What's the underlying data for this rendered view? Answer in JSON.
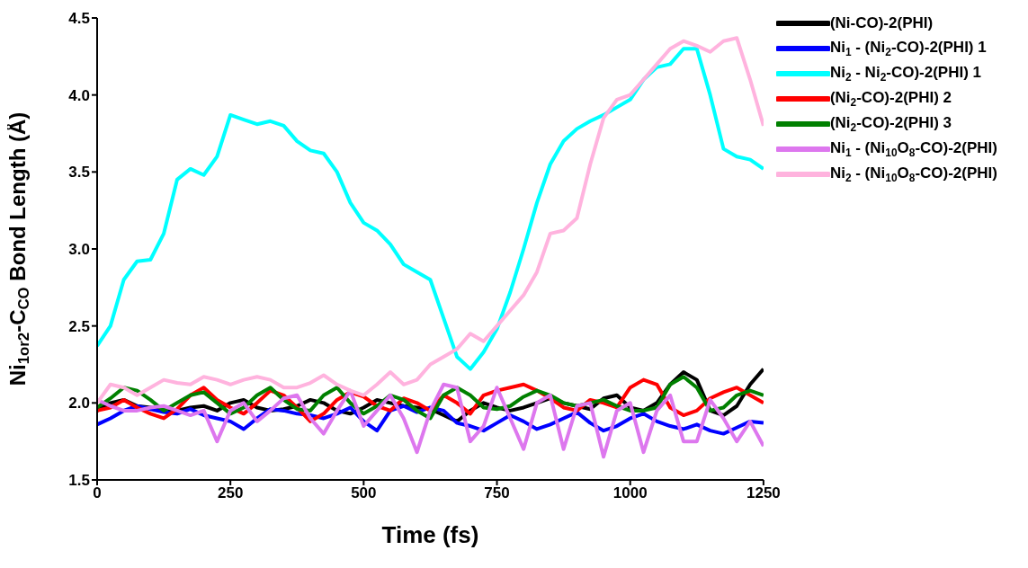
{
  "chart_data": {
    "type": "line",
    "xlabel": "Time (fs)",
    "ylabel": "Ni$_{1or2}$-C$_{CO}$ Bond Length (Å)",
    "xlim": [
      0,
      1250
    ],
    "xticks": [
      0,
      250,
      500,
      750,
      1000,
      1250
    ],
    "ylim": [
      1.5,
      4.5
    ],
    "yticks": [
      1.5,
      {
        "value": 2,
        "label": "2.0"
      },
      2.5,
      {
        "value": 3,
        "label": "3.0"
      },
      3.5,
      {
        "value": 4,
        "label": "4.0"
      },
      4.5
    ],
    "legend": "right",
    "marker": "none",
    "line_style": "solid",
    "grid": false,
    "x": [
      0,
      25,
      50,
      75,
      100,
      125,
      150,
      175,
      200,
      225,
      250,
      275,
      300,
      325,
      350,
      375,
      400,
      425,
      450,
      475,
      500,
      525,
      550,
      575,
      600,
      625,
      650,
      675,
      700,
      725,
      750,
      775,
      800,
      825,
      850,
      875,
      900,
      925,
      950,
      975,
      1000,
      1025,
      1050,
      1075,
      1100,
      1125,
      1150,
      1175,
      1200,
      1225,
      1250
    ],
    "series": [
      {
        "name": "(Ni-CO)-2(PHI)",
        "color": "#000000",
        "values": [
          1.95,
          2.0,
          2.02,
          1.98,
          1.97,
          1.96,
          1.95,
          1.97,
          1.98,
          1.95,
          2.0,
          2.02,
          1.97,
          1.95,
          1.96,
          1.98,
          2.02,
          2.0,
          1.95,
          1.93,
          1.97,
          2.02,
          2.0,
          1.98,
          1.97,
          1.96,
          1.92,
          1.88,
          1.95,
          2.0,
          1.97,
          1.95,
          1.97,
          2.0,
          2.03,
          2.0,
          1.98,
          1.96,
          2.03,
          2.05,
          1.97,
          1.95,
          2.0,
          2.12,
          2.2,
          2.15,
          1.95,
          1.92,
          1.98,
          2.12,
          2.22
        ]
      },
      {
        "name": "Ni$_{1}$ - (Ni$_{2}$-CO)-2(PHI) 1",
        "color": "#0000ff",
        "values": [
          1.86,
          1.9,
          1.95,
          1.98,
          1.96,
          1.94,
          1.93,
          1.96,
          1.92,
          1.9,
          1.88,
          1.83,
          1.9,
          1.96,
          1.95,
          1.93,
          1.92,
          1.9,
          1.93,
          1.97,
          1.88,
          1.82,
          1.95,
          1.98,
          1.94,
          1.97,
          1.95,
          1.87,
          1.85,
          1.82,
          1.87,
          1.92,
          1.88,
          1.83,
          1.86,
          1.9,
          1.94,
          1.87,
          1.82,
          1.85,
          1.9,
          1.93,
          1.88,
          1.85,
          1.83,
          1.86,
          1.82,
          1.8,
          1.84,
          1.88,
          1.87
        ]
      },
      {
        "name": "Ni$_{2}$ - Ni$_{2}$-CO)-2(PHI) 1",
        "color": "#00ffff",
        "values": [
          2.37,
          2.5,
          2.8,
          2.92,
          2.93,
          3.1,
          3.45,
          3.52,
          3.48,
          3.6,
          3.87,
          3.84,
          3.81,
          3.83,
          3.8,
          3.7,
          3.64,
          3.62,
          3.5,
          3.3,
          3.17,
          3.12,
          3.03,
          2.9,
          2.85,
          2.8,
          2.55,
          2.3,
          2.22,
          2.33,
          2.48,
          2.72,
          3.0,
          3.3,
          3.55,
          3.7,
          3.78,
          3.83,
          3.87,
          3.92,
          3.97,
          4.1,
          4.18,
          4.2,
          4.3,
          4.3,
          4.0,
          3.65,
          3.6,
          3.58,
          3.52
        ]
      },
      {
        "name": "(Ni$_{2}$-CO)-2(PHI) 2",
        "color": "#ff0000",
        "values": [
          1.95,
          1.97,
          2.02,
          1.97,
          1.93,
          1.9,
          1.96,
          2.05,
          2.1,
          2.02,
          1.97,
          1.93,
          2.0,
          2.08,
          2.05,
          1.97,
          1.88,
          1.93,
          2.02,
          2.07,
          2.04,
          1.98,
          1.95,
          2.03,
          2.0,
          1.95,
          2.05,
          2.0,
          1.93,
          2.05,
          2.08,
          2.1,
          2.12,
          2.08,
          2.03,
          1.97,
          1.95,
          2.02,
          2.0,
          1.97,
          2.1,
          2.15,
          2.12,
          1.97,
          1.92,
          1.95,
          2.03,
          2.07,
          2.1,
          2.05,
          2.0
        ]
      },
      {
        "name": "(Ni$_{2}$-CO)-2(PHI) 3",
        "color": "#008000",
        "values": [
          1.97,
          2.03,
          2.1,
          2.08,
          2.02,
          1.95,
          2.0,
          2.05,
          2.07,
          2.0,
          1.93,
          1.97,
          2.05,
          2.1,
          2.02,
          1.96,
          1.95,
          2.05,
          2.1,
          2.0,
          1.93,
          1.98,
          2.05,
          2.02,
          1.95,
          1.9,
          2.05,
          2.1,
          2.05,
          1.97,
          1.96,
          1.98,
          2.04,
          2.08,
          2.05,
          2.0,
          1.98,
          2.0,
          2.02,
          1.98,
          1.95,
          1.95,
          1.97,
          2.12,
          2.17,
          2.1,
          1.95,
          1.97,
          2.05,
          2.08,
          2.05
        ]
      },
      {
        "name": "Ni$_{1}$ - (Ni$_{10}$O$_{8}$-CO)-2(PHI)",
        "color": "#dd77ee",
        "values": [
          2.02,
          1.98,
          1.95,
          1.95,
          1.97,
          1.98,
          1.95,
          1.92,
          1.95,
          1.75,
          1.95,
          2.0,
          1.88,
          1.95,
          2.03,
          2.05,
          1.9,
          1.8,
          1.95,
          2.08,
          1.85,
          1.95,
          2.05,
          1.9,
          1.68,
          1.95,
          2.12,
          2.1,
          1.75,
          1.85,
          2.1,
          1.9,
          1.7,
          2.0,
          2.05,
          1.7,
          1.98,
          2.0,
          1.65,
          1.95,
          2.0,
          1.68,
          1.95,
          2.05,
          1.75,
          1.75,
          2.02,
          1.9,
          1.75,
          1.88,
          1.72
        ]
      },
      {
        "name": "Ni$_{2}$ - (Ni$_{10}$O$_{8}$-CO)-2(PHI)",
        "color": "#ffb3de",
        "values": [
          2.0,
          2.12,
          2.1,
          2.05,
          2.1,
          2.15,
          2.13,
          2.12,
          2.17,
          2.15,
          2.12,
          2.15,
          2.17,
          2.15,
          2.1,
          2.1,
          2.13,
          2.18,
          2.12,
          2.08,
          2.05,
          2.12,
          2.2,
          2.12,
          2.15,
          2.25,
          2.3,
          2.35,
          2.45,
          2.4,
          2.5,
          2.6,
          2.7,
          2.85,
          3.1,
          3.12,
          3.2,
          3.55,
          3.85,
          3.97,
          4.0,
          4.1,
          4.2,
          4.3,
          4.35,
          4.32,
          4.28,
          4.35,
          4.37,
          4.1,
          3.8
        ]
      }
    ]
  }
}
